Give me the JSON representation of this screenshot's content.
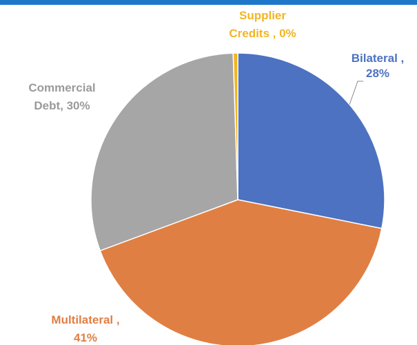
{
  "colors": {
    "top_bar": "#1f77c9",
    "bilateral": "#4c72c1",
    "multilateral": "#e07f43",
    "commercial": "#a6a6a6",
    "supplier": "#f2b522",
    "label_bilateral": "#4c72c1",
    "label_multilateral": "#e07f43",
    "label_commercial": "#9a9a9a",
    "label_supplier": "#f2b522"
  },
  "chart_data": {
    "type": "pie",
    "title": "",
    "start_angle_deg": 0,
    "direction": "clockwise",
    "slices": [
      {
        "name": "Bilateral",
        "value": 28,
        "label_lines": [
          "Bilateral ,",
          "28%"
        ],
        "color": "#4c72c1"
      },
      {
        "name": "Multilateral",
        "value": 41,
        "label_lines": [
          "Multilateral ,",
          "41%"
        ],
        "color": "#e07f43"
      },
      {
        "name": "Commercial Debt",
        "value": 30,
        "label_lines": [
          "Commercial",
          "Debt, 30%"
        ],
        "color": "#a6a6a6"
      },
      {
        "name": "Supplier Credits",
        "value": 0,
        "display_fraction_pct": 0.5,
        "label_lines": [
          "Supplier",
          "Credits , 0%"
        ],
        "color": "#f2b522"
      }
    ]
  }
}
